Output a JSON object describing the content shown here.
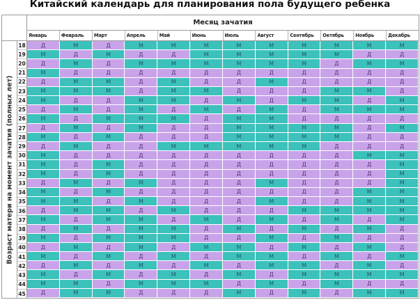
{
  "title": "Китайский календарь для планирования пола будущего ребенка",
  "month_header": "Месяц зачатия",
  "side_label": "Возраст матери на момент зачатия (полных лет)",
  "colors": {
    "girl": "#c9a3ea",
    "boy": "#3cc1bb"
  },
  "months": [
    "Январь",
    "Февраль",
    "Март",
    "Апрель",
    "Май",
    "Июнь",
    "Июль",
    "Август",
    "Сентябрь",
    "Октябрь",
    "Ноябрь",
    "Декабрь"
  ],
  "rows": [
    {
      "age": "18",
      "cells": [
        "Д",
        "М",
        "Д",
        "М",
        "М",
        "М",
        "М",
        "М",
        "М",
        "М",
        "М",
        "М"
      ]
    },
    {
      "age": "19",
      "cells": [
        "М",
        "Д",
        "М",
        "Д",
        "Д",
        "М",
        "М",
        "М",
        "М",
        "М",
        "Д",
        "Д"
      ]
    },
    {
      "age": "20",
      "cells": [
        "Д",
        "М",
        "Д",
        "М",
        "М",
        "М",
        "М",
        "М",
        "М",
        "Д",
        "М",
        "М"
      ]
    },
    {
      "age": "21",
      "cells": [
        "М",
        "Д",
        "Д",
        "Д",
        "Д",
        "Д",
        "Д",
        "Д",
        "Д",
        "Д",
        "Д",
        "Д"
      ]
    },
    {
      "age": "22",
      "cells": [
        "Д",
        "М",
        "М",
        "Д",
        "М",
        "Д",
        "Д",
        "М",
        "Д",
        "Д",
        "Д",
        "Д"
      ]
    },
    {
      "age": "23",
      "cells": [
        "М",
        "М",
        "М",
        "Д",
        "М",
        "М",
        "Д",
        "Д",
        "Д",
        "М",
        "М",
        "Д"
      ]
    },
    {
      "age": "24",
      "cells": [
        "М",
        "Д",
        "Д",
        "М",
        "М",
        "Д",
        "М",
        "Д",
        "М",
        "М",
        "Д",
        "М"
      ]
    },
    {
      "age": "25",
      "cells": [
        "Д",
        "М",
        "Д",
        "М",
        "Д",
        "М",
        "Д",
        "М",
        "Д",
        "М",
        "М",
        "М"
      ]
    },
    {
      "age": "26",
      "cells": [
        "М",
        "Д",
        "М",
        "М",
        "М",
        "Д",
        "М",
        "М",
        "Д",
        "Д",
        "Д",
        "Д"
      ]
    },
    {
      "age": "27",
      "cells": [
        "Д",
        "М",
        "Д",
        "М",
        "Д",
        "Д",
        "М",
        "М",
        "М",
        "М",
        "Д",
        "М"
      ]
    },
    {
      "age": "28",
      "cells": [
        "М",
        "Д",
        "М",
        "Д",
        "Д",
        "Д",
        "М",
        "М",
        "М",
        "М",
        "Д",
        "Д"
      ]
    },
    {
      "age": "29",
      "cells": [
        "Д",
        "М",
        "Д",
        "Д",
        "М",
        "М",
        "М",
        "М",
        "М",
        "Д",
        "Д",
        "Д"
      ]
    },
    {
      "age": "30",
      "cells": [
        "М",
        "Д",
        "Д",
        "Д",
        "Д",
        "Д",
        "Д",
        "Д",
        "Д",
        "Д",
        "М",
        "М"
      ]
    },
    {
      "age": "31",
      "cells": [
        "М",
        "Д",
        "М",
        "Д",
        "Д",
        "Д",
        "Д",
        "Д",
        "Д",
        "Д",
        "Д",
        "М"
      ]
    },
    {
      "age": "32",
      "cells": [
        "М",
        "Д",
        "М",
        "Д",
        "Д",
        "Д",
        "Д",
        "Д",
        "Д",
        "Д",
        "Д",
        "М"
      ]
    },
    {
      "age": "33",
      "cells": [
        "Д",
        "М",
        "Д",
        "М",
        "Д",
        "Д",
        "Д",
        "М",
        "Д",
        "Д",
        "Д",
        "М"
      ]
    },
    {
      "age": "34",
      "cells": [
        "М",
        "Д",
        "М",
        "Д",
        "Д",
        "Д",
        "Д",
        "Д",
        "Д",
        "Д",
        "М",
        "М"
      ]
    },
    {
      "age": "35",
      "cells": [
        "М",
        "М",
        "Д",
        "М",
        "Д",
        "Д",
        "Д",
        "М",
        "Д",
        "Д",
        "М",
        "М"
      ]
    },
    {
      "age": "36",
      "cells": [
        "Д",
        "М",
        "М",
        "Д",
        "М",
        "Д",
        "Д",
        "Д",
        "М",
        "М",
        "М",
        "М"
      ]
    },
    {
      "age": "37",
      "cells": [
        "М",
        "Д",
        "М",
        "М",
        "Д",
        "М",
        "Д",
        "М",
        "Д",
        "М",
        "Д",
        "М"
      ]
    },
    {
      "age": "38",
      "cells": [
        "Д",
        "М",
        "Д",
        "М",
        "М",
        "Д",
        "М",
        "Д",
        "М",
        "Д",
        "М",
        "Д"
      ]
    },
    {
      "age": "39",
      "cells": [
        "М",
        "Д",
        "М",
        "М",
        "М",
        "Д",
        "Д",
        "М",
        "Д",
        "М",
        "Д",
        "Д"
      ]
    },
    {
      "age": "40",
      "cells": [
        "Д",
        "М",
        "Д",
        "М",
        "Д",
        "М",
        "М",
        "Д",
        "М",
        "Д",
        "М",
        "Д"
      ]
    },
    {
      "age": "41",
      "cells": [
        "М",
        "Д",
        "М",
        "Д",
        "М",
        "Д",
        "М",
        "М",
        "Д",
        "М",
        "Д",
        "М"
      ]
    },
    {
      "age": "42",
      "cells": [
        "Д",
        "М",
        "Д",
        "М",
        "Д",
        "М",
        "Д",
        "М",
        "М",
        "Д",
        "М",
        "Д"
      ]
    },
    {
      "age": "43",
      "cells": [
        "М",
        "Д",
        "М",
        "Д",
        "М",
        "Д",
        "М",
        "Д",
        "М",
        "М",
        "М",
        "М"
      ]
    },
    {
      "age": "44",
      "cells": [
        "М",
        "М",
        "Д",
        "М",
        "М",
        "М",
        "Д",
        "М",
        "Д",
        "М",
        "Д",
        "Д"
      ]
    },
    {
      "age": "45",
      "cells": [
        "Д",
        "М",
        "М",
        "Д",
        "Д",
        "Д",
        "М",
        "Д",
        "М",
        "Д",
        "М",
        "М"
      ]
    }
  ]
}
